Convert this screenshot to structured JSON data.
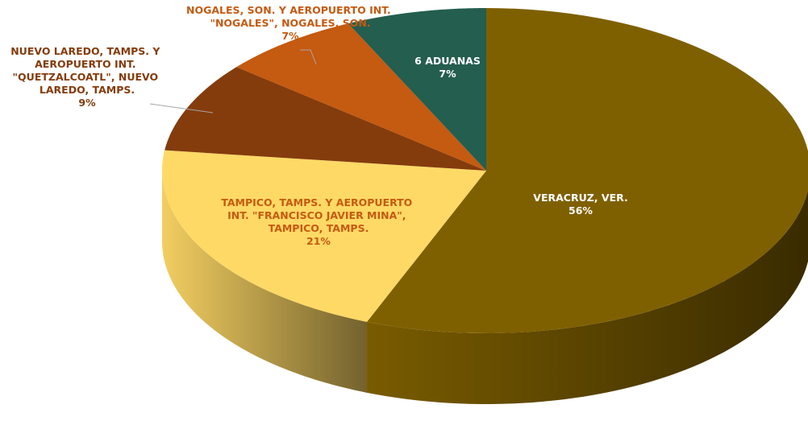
{
  "chart_data": {
    "type": "pie3d",
    "categories": [
      "VERACRUZ, VER.",
      "TAMPICO, TAMPS. Y AEROPUERTO INT. \"FRANCISCO JAVIER MINA\", TAMPICO, TAMPS.",
      "NUEVO LAREDO, TAMPS. Y AEROPUERTO INT. \"QUETZALCOATL\", NUEVO LAREDO, TAMPS.",
      "NOGALES, SON. Y AEROPUERTO INT. \"NOGALES\", NOGALES, SON.",
      "6 ADUANAS"
    ],
    "values": [
      56,
      21,
      9,
      7,
      7
    ],
    "value_labels": [
      "56%",
      "21%",
      "9%",
      "7%",
      "7%"
    ],
    "colors": [
      "#7f6000",
      "#ffd966",
      "#843c0c",
      "#c55a11",
      "#245e4f"
    ]
  }
}
